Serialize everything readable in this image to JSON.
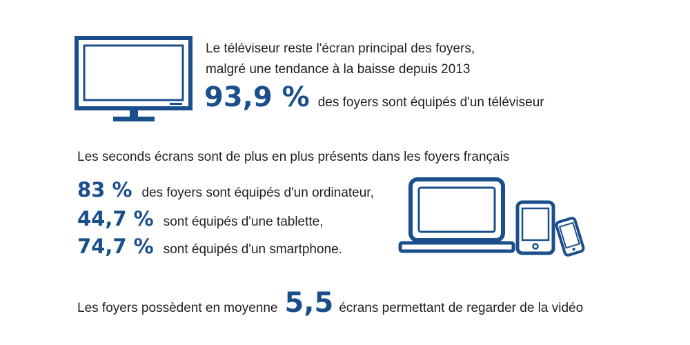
{
  "colors": {
    "accent": "#1b4f8c",
    "text": "#1f1f1f",
    "background": "#ffffff"
  },
  "tv": {
    "icon": "tv-icon",
    "line1": "Le téléviseur reste l'écran principal des foyers,",
    "line2": "malgré une tendance à la baisse depuis 2013",
    "stat_value": "93,9 %",
    "stat_text": "des foyers sont équipés d'un téléviseur"
  },
  "second_screens": {
    "heading": "Les seconds écrans sont de plus en plus présents dans les foyers français",
    "icons": [
      "laptop-icon",
      "tablet-icon",
      "smartphone-icon"
    ],
    "items": [
      {
        "value": "83 %",
        "text": "des foyers sont équipés d'un ordinateur,"
      },
      {
        "value": "44,7 %",
        "text": "sont équipés d'une tablette,"
      },
      {
        "value": "74,7 %",
        "text": "sont équipés d'un smartphone."
      }
    ]
  },
  "average": {
    "prefix": "Les foyers possèdent en moyenne",
    "value": "5,5",
    "suffix": "écrans permettant de regarder de la vidéo"
  }
}
